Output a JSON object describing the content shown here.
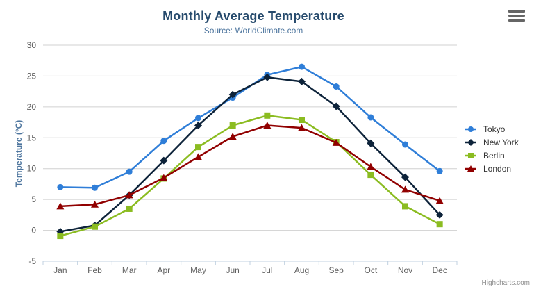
{
  "credits": "Highcharts.com",
  "export_menu": {
    "icon": "hamburger-icon"
  },
  "colors": {
    "title": "#274b6d",
    "subtitle": "#4d759e",
    "axis_title": "#4d759e",
    "tick_label": "#606060",
    "grid_line": "#d0d0d0",
    "axis_line": "#c0d0e0",
    "legend_text": "#333333",
    "credits_text": "#909090",
    "menu_icon": "#666666"
  },
  "chart_data": {
    "type": "line",
    "title": "Monthly Average Temperature",
    "subtitle": "Source: WorldClimate.com",
    "xlabel": "",
    "ylabel": "Temperature (°C)",
    "categories": [
      "Jan",
      "Feb",
      "Mar",
      "Apr",
      "May",
      "Jun",
      "Jul",
      "Aug",
      "Sep",
      "Oct",
      "Nov",
      "Dec"
    ],
    "ylim": [
      -5,
      30
    ],
    "y_ticks": [
      -5,
      0,
      5,
      10,
      15,
      20,
      25,
      30
    ],
    "grid": true,
    "legend_position": "right-middle-vertical",
    "series": [
      {
        "name": "Tokyo",
        "color": "#2f7ed8",
        "marker": "circle",
        "values": [
          7.0,
          6.9,
          9.5,
          14.5,
          18.2,
          21.5,
          25.2,
          26.5,
          23.3,
          18.3,
          13.9,
          9.6
        ]
      },
      {
        "name": "New York",
        "color": "#0d233a",
        "marker": "diamond",
        "values": [
          -0.2,
          0.8,
          5.7,
          11.3,
          17.0,
          22.0,
          24.8,
          24.1,
          20.1,
          14.1,
          8.6,
          2.5
        ]
      },
      {
        "name": "Berlin",
        "color": "#8bbc21",
        "marker": "square",
        "values": [
          -0.9,
          0.6,
          3.5,
          8.4,
          13.5,
          17.0,
          18.6,
          17.9,
          14.3,
          9.0,
          3.9,
          1.0
        ]
      },
      {
        "name": "London",
        "color": "#910000",
        "marker": "triangle",
        "values": [
          3.9,
          4.2,
          5.7,
          8.5,
          11.9,
          15.2,
          17.0,
          16.6,
          14.2,
          10.3,
          6.6,
          4.8
        ]
      }
    ]
  }
}
